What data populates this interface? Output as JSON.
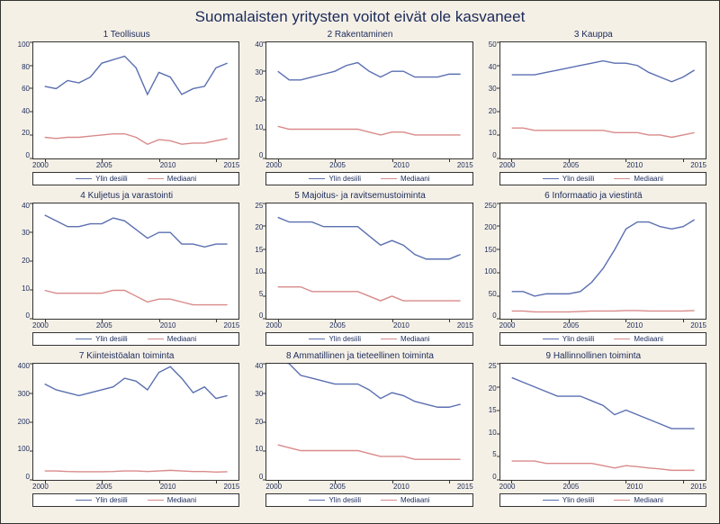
{
  "title": "Suomalaisten yritysten voitot eivät ole kasvaneet",
  "colors": {
    "background": "#f5f0e6",
    "plot_bg": "#ffffff",
    "border": "#333333",
    "text": "#1a2a5a",
    "series1": "#5a6fb0",
    "series2": "#d98a8a"
  },
  "title_fontsize": 17,
  "subtitle_fontsize": 10,
  "tick_fontsize": 8,
  "legend_fontsize": 8,
  "line_width": 1.4,
  "legend_labels": {
    "s1": "Ylin desiili",
    "s2": "Mediaani"
  },
  "x": {
    "min": 1999,
    "max": 2017,
    "ticks": [
      2000,
      2005,
      2010,
      2015
    ]
  },
  "years": [
    2000,
    2001,
    2002,
    2003,
    2004,
    2005,
    2006,
    2007,
    2008,
    2009,
    2010,
    2011,
    2012,
    2013,
    2014,
    2015,
    2016
  ],
  "panels": [
    {
      "title": "1 Teollisuus",
      "ylim": [
        0,
        100
      ],
      "ytick_step": 20,
      "s1": [
        62,
        60,
        67,
        65,
        70,
        82,
        85,
        88,
        78,
        55,
        74,
        70,
        55,
        60,
        62,
        78,
        82
      ],
      "s2": [
        18,
        17,
        18,
        18,
        19,
        20,
        21,
        21,
        18,
        12,
        16,
        15,
        12,
        13,
        13,
        15,
        17
      ]
    },
    {
      "title": "2 Rakentaminen",
      "ylim": [
        0,
        40
      ],
      "ytick_step": 10,
      "s1": [
        30,
        27,
        27,
        28,
        29,
        30,
        32,
        33,
        30,
        28,
        30,
        30,
        28,
        28,
        28,
        29,
        29
      ],
      "s2": [
        11,
        10,
        10,
        10,
        10,
        10,
        10,
        10,
        9,
        8,
        9,
        9,
        8,
        8,
        8,
        8,
        8
      ]
    },
    {
      "title": "3 Kauppa",
      "ylim": [
        0,
        50
      ],
      "ytick_step": 10,
      "s1": [
        36,
        36,
        36,
        37,
        38,
        39,
        40,
        41,
        42,
        41,
        41,
        40,
        37,
        35,
        33,
        35,
        38
      ],
      "s2": [
        13,
        13,
        12,
        12,
        12,
        12,
        12,
        12,
        12,
        11,
        11,
        11,
        10,
        10,
        9,
        10,
        11
      ]
    },
    {
      "title": "4 Kuljetus ja varastointi",
      "ylim": [
        0,
        40
      ],
      "ytick_step": 10,
      "s1": [
        36,
        34,
        32,
        32,
        33,
        33,
        35,
        34,
        31,
        28,
        30,
        30,
        26,
        26,
        25,
        26,
        26
      ],
      "s2": [
        10,
        9,
        9,
        9,
        9,
        9,
        10,
        10,
        8,
        6,
        7,
        7,
        6,
        5,
        5,
        5,
        5
      ]
    },
    {
      "title": "5 Majoitus- ja ravitsemustoiminta",
      "ylim": [
        0,
        25
      ],
      "ytick_step": 5,
      "s1": [
        22,
        21,
        21,
        21,
        20,
        20,
        20,
        20,
        18,
        16,
        17,
        16,
        14,
        13,
        13,
        13,
        14
      ],
      "s2": [
        7,
        7,
        7,
        6,
        6,
        6,
        6,
        6,
        5,
        4,
        5,
        4,
        4,
        4,
        4,
        4,
        4
      ]
    },
    {
      "title": "6 Informaatio ja viestintä",
      "ylim": [
        0,
        250
      ],
      "ytick_step": 50,
      "s1": [
        60,
        60,
        50,
        55,
        55,
        55,
        60,
        80,
        110,
        150,
        195,
        210,
        210,
        200,
        195,
        200,
        215
      ],
      "s2": [
        18,
        18,
        16,
        16,
        16,
        16,
        17,
        18,
        18,
        18,
        19,
        19,
        18,
        18,
        18,
        18,
        19
      ]
    },
    {
      "title": "7 Kiinteistöalan toiminta",
      "ylim": [
        0,
        400
      ],
      "ytick_step": 100,
      "s1": [
        330,
        310,
        300,
        290,
        300,
        310,
        320,
        350,
        340,
        310,
        370,
        390,
        350,
        300,
        320,
        280,
        290
      ],
      "s2": [
        30,
        30,
        28,
        27,
        27,
        27,
        28,
        30,
        30,
        28,
        30,
        32,
        30,
        28,
        28,
        26,
        27
      ]
    },
    {
      "title": "8 Ammatillinen ja tieteellinen toiminta",
      "ylim": [
        0,
        40
      ],
      "ytick_step": 10,
      "s1": [
        41,
        40,
        36,
        35,
        34,
        33,
        33,
        33,
        31,
        28,
        30,
        29,
        27,
        26,
        25,
        25,
        26
      ],
      "s2": [
        12,
        11,
        10,
        10,
        10,
        10,
        10,
        10,
        9,
        8,
        8,
        8,
        7,
        7,
        7,
        7,
        7
      ]
    },
    {
      "title": "9 Hallinnollinen toiminta",
      "ylim": [
        0,
        25
      ],
      "ytick_step": 5,
      "s1": [
        22,
        21,
        20,
        19,
        18,
        18,
        18,
        17,
        16,
        14,
        15,
        14,
        13,
        12,
        11,
        11,
        11
      ],
      "s2": [
        4,
        4,
        4,
        3.5,
        3.5,
        3.5,
        3.5,
        3.5,
        3,
        2.5,
        3,
        2.8,
        2.5,
        2.3,
        2,
        2,
        2
      ]
    }
  ]
}
